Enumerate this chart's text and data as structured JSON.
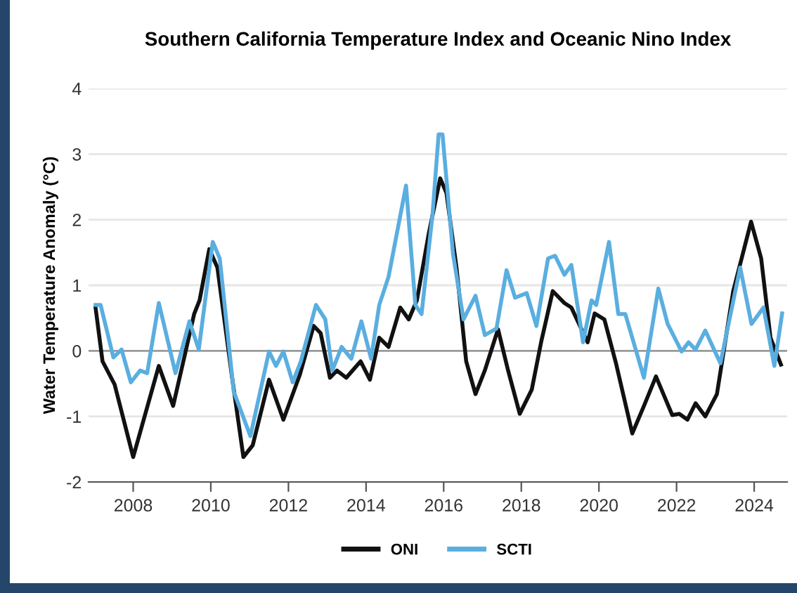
{
  "chart_data": {
    "type": "line",
    "title": "Southern California Temperature Index and Oceanic Nino Index",
    "ylabel": "Water Temperature Anomaly (°C)",
    "xlim": [
      2006.85,
      2024.85
    ],
    "xticks": [
      2008,
      2010,
      2012,
      2014,
      2016,
      2018,
      2020,
      2022,
      2024
    ],
    "ylim": [
      -2,
      4
    ],
    "yticks": [
      -2,
      -1,
      0,
      1,
      2,
      3,
      4
    ],
    "grid": "y",
    "legend": "bottom",
    "marker": "none",
    "line_style": "solid",
    "series": [
      {
        "name": "ONI",
        "color": "#111111",
        "x": [
          2007.03,
          2007.21,
          2007.52,
          2008.0,
          2008.66,
          2009.03,
          2009.57,
          2009.71,
          2009.96,
          2010.17,
          2010.54,
          2010.84,
          2011.08,
          2011.5,
          2011.87,
          2012.29,
          2012.65,
          2012.83,
          2013.07,
          2013.25,
          2013.49,
          2013.86,
          2014.1,
          2014.34,
          2014.58,
          2014.88,
          2015.1,
          2015.31,
          2015.61,
          2015.91,
          2016.07,
          2016.33,
          2016.58,
          2016.82,
          2017.06,
          2017.4,
          2017.66,
          2017.96,
          2018.27,
          2018.51,
          2018.81,
          2019.11,
          2019.29,
          2019.71,
          2019.89,
          2020.14,
          2020.44,
          2020.86,
          2021.16,
          2021.47,
          2021.89,
          2022.07,
          2022.28,
          2022.49,
          2022.74,
          2023.04,
          2023.46,
          2023.92,
          2024.18,
          2024.42,
          2024.69
        ],
        "values": [
          0.66,
          -0.16,
          -0.51,
          -1.62,
          -0.23,
          -0.84,
          0.56,
          0.77,
          1.55,
          1.27,
          -0.37,
          -1.62,
          -1.44,
          -0.44,
          -1.05,
          -0.37,
          0.38,
          0.27,
          -0.41,
          -0.3,
          -0.41,
          -0.16,
          -0.44,
          0.2,
          0.06,
          0.66,
          0.48,
          0.77,
          1.77,
          2.63,
          2.41,
          1.27,
          -0.16,
          -0.66,
          -0.3,
          0.33,
          -0.3,
          -0.96,
          -0.59,
          0.13,
          0.91,
          0.73,
          0.66,
          0.13,
          0.57,
          0.48,
          -0.19,
          -1.26,
          -0.84,
          -0.39,
          -0.98,
          -0.96,
          -1.05,
          -0.8,
          -1.0,
          -0.66,
          0.91,
          1.97,
          1.41,
          0.2,
          -0.21
        ]
      },
      {
        "name": "SCTI",
        "color": "#5aaee0",
        "x": [
          2007.03,
          2007.16,
          2007.49,
          2007.7,
          2007.94,
          2008.18,
          2008.36,
          2008.66,
          2009.09,
          2009.45,
          2009.69,
          2010.05,
          2010.23,
          2010.59,
          2011.02,
          2011.5,
          2011.68,
          2011.87,
          2012.11,
          2012.32,
          2012.71,
          2012.95,
          2013.13,
          2013.37,
          2013.62,
          2013.88,
          2014.13,
          2014.34,
          2014.58,
          2015.03,
          2015.27,
          2015.43,
          2015.71,
          2015.87,
          2015.97,
          2016.24,
          2016.51,
          2016.82,
          2017.06,
          2017.36,
          2017.62,
          2017.84,
          2018.14,
          2018.39,
          2018.69,
          2018.87,
          2019.11,
          2019.29,
          2019.59,
          2019.81,
          2019.93,
          2020.26,
          2020.5,
          2020.68,
          2021.16,
          2021.53,
          2021.77,
          2022.13,
          2022.31,
          2022.49,
          2022.74,
          2023.13,
          2023.64,
          2023.93,
          2024.24,
          2024.52,
          2024.72
        ],
        "values": [
          0.7,
          0.7,
          -0.1,
          0.02,
          -0.48,
          -0.3,
          -0.34,
          0.73,
          -0.34,
          0.45,
          0.02,
          1.66,
          1.41,
          -0.62,
          -1.3,
          -0.01,
          -0.23,
          -0.01,
          -0.48,
          -0.16,
          0.7,
          0.48,
          -0.3,
          0.06,
          -0.12,
          0.45,
          -0.12,
          0.7,
          1.13,
          2.52,
          0.7,
          0.56,
          2.06,
          3.3,
          3.3,
          1.48,
          0.48,
          0.84,
          0.24,
          0.34,
          1.23,
          0.81,
          0.88,
          0.38,
          1.41,
          1.45,
          1.16,
          1.31,
          0.13,
          0.77,
          0.7,
          1.66,
          0.56,
          0.56,
          -0.41,
          0.95,
          0.41,
          -0.01,
          0.13,
          0.02,
          0.31,
          -0.19,
          1.27,
          0.41,
          0.66,
          -0.23,
          0.57
        ]
      }
    ]
  }
}
